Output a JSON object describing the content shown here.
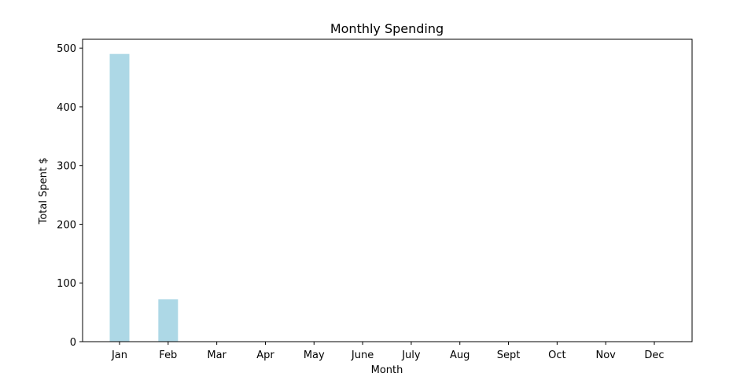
{
  "chart_data": {
    "type": "bar",
    "title": "Monthly Spending",
    "xlabel": "Month",
    "ylabel": "Total Spent $",
    "categories": [
      "Jan",
      "Feb",
      "Mar",
      "Apr",
      "May",
      "June",
      "July",
      "Aug",
      "Sept",
      "Oct",
      "Nov",
      "Dec"
    ],
    "values": [
      490,
      72,
      0,
      0,
      0,
      0,
      0,
      0,
      0,
      0,
      0,
      0
    ],
    "ylim": [
      0,
      515
    ],
    "yticks": [
      0,
      100,
      200,
      300,
      400,
      500
    ],
    "bar_color": "#add8e6",
    "grid": false,
    "legend": false
  }
}
